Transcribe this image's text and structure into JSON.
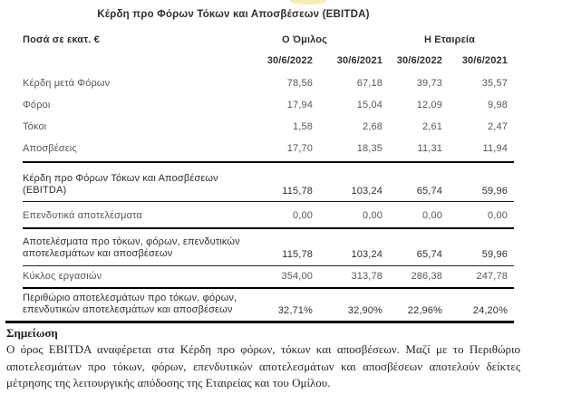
{
  "title": "Κέρδη προ Φόρων Τόκων και Αποσβέσεων (EBITDA)",
  "table": {
    "unit_label": "Ποσά σε εκατ. €",
    "group_header": "Ο Όμιλος",
    "company_header": "Η Εταιρεία",
    "date_columns": [
      "30/6/2022",
      "30/6/2021",
      "30/6/2022",
      "30/6/2021"
    ],
    "rows": [
      {
        "label_lines": [
          "Κέρδη μετά Φόρων"
        ],
        "values": [
          "78,56",
          "67,18",
          "39,73",
          "35,57"
        ]
      },
      {
        "label_lines": [
          "Φόροι"
        ],
        "values": [
          "17,94",
          "15,04",
          "12,09",
          "9,98"
        ]
      },
      {
        "label_lines": [
          "Τόκοι"
        ],
        "values": [
          "1,58",
          "2,68",
          "2,61",
          "2,47"
        ]
      },
      {
        "label_lines": [
          "Αποσβέσεις"
        ],
        "values": [
          "17,70",
          "18,35",
          "11,31",
          "11,94"
        ]
      },
      {
        "label_lines": [
          "Κέρδη προ Φόρων Τόκων και Αποσβέσεων",
          "(EBITDA)"
        ],
        "values": [
          "115,78",
          "103,24",
          "65,74",
          "59,96"
        ]
      },
      {
        "label_lines": [
          "Επενδυτικά αποτελέσματα"
        ],
        "values": [
          "0,00",
          "0,00",
          "0,00",
          "0,00"
        ]
      },
      {
        "label_lines": [
          "Αποτελέσματα προ τόκων, φόρων,  επενδυτικών",
          "αποτελεσμάτων και αποσβέσεων"
        ],
        "values": [
          "115,78",
          "103,24",
          "65,74",
          "59,96"
        ]
      },
      {
        "label_lines": [
          "Κύκλος εργασιών"
        ],
        "values": [
          "354,00",
          "313,78",
          "286,38",
          "247,78"
        ]
      },
      {
        "label_lines": [
          "Περιθώριο αποτελεσμάτων προ τόκων, φόρων,",
          "επενδυτικών αποτελεσμάτων και αποσβέσεων"
        ],
        "values": [
          "32,71%",
          "32,90%",
          "22,96%",
          "24,20%"
        ]
      }
    ]
  },
  "note": {
    "heading": "Σημείωση",
    "body": "Ο όρος EBITDA  αναφέρεται στα Κέρδη προ φόρων, τόκων και αποσβέσεων. Μαζί με το Περιθώριο αποτελεσμάτων προ τόκων, φόρων, επενδυτικών αποτελεσμάτων και αποσβέσεων αποτελούν δείκτες μέτρησης της λειτουργικής απόδοσης της Εταιρείας και του Ομίλου."
  }
}
